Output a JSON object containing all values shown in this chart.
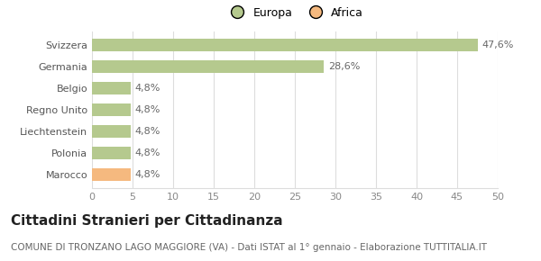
{
  "categories": [
    "Svizzera",
    "Germania",
    "Belgio",
    "Regno Unito",
    "Liechtenstein",
    "Polonia",
    "Marocco"
  ],
  "values": [
    47.6,
    28.6,
    4.8,
    4.8,
    4.8,
    4.8,
    4.8
  ],
  "labels": [
    "47,6%",
    "28,6%",
    "4,8%",
    "4,8%",
    "4,8%",
    "4,8%",
    "4,8%"
  ],
  "bar_colors": [
    "#b5c98e",
    "#b5c98e",
    "#b5c98e",
    "#b5c98e",
    "#b5c98e",
    "#b5c98e",
    "#f5b97f"
  ],
  "legend_labels": [
    "Europa",
    "Africa"
  ],
  "legend_colors": [
    "#b5c98e",
    "#f5b97f"
  ],
  "xlim": [
    0,
    50
  ],
  "xticks": [
    0,
    5,
    10,
    15,
    20,
    25,
    30,
    35,
    40,
    45,
    50
  ],
  "title": "Cittadini Stranieri per Cittadinanza",
  "subtitle": "COMUNE DI TRONZANO LAGO MAGGIORE (VA) - Dati ISTAT al 1° gennaio - Elaborazione TUTTITALIA.IT",
  "background_color": "#ffffff",
  "grid_color": "#dddddd",
  "title_fontsize": 11,
  "subtitle_fontsize": 7.5,
  "label_fontsize": 8,
  "tick_fontsize": 8
}
